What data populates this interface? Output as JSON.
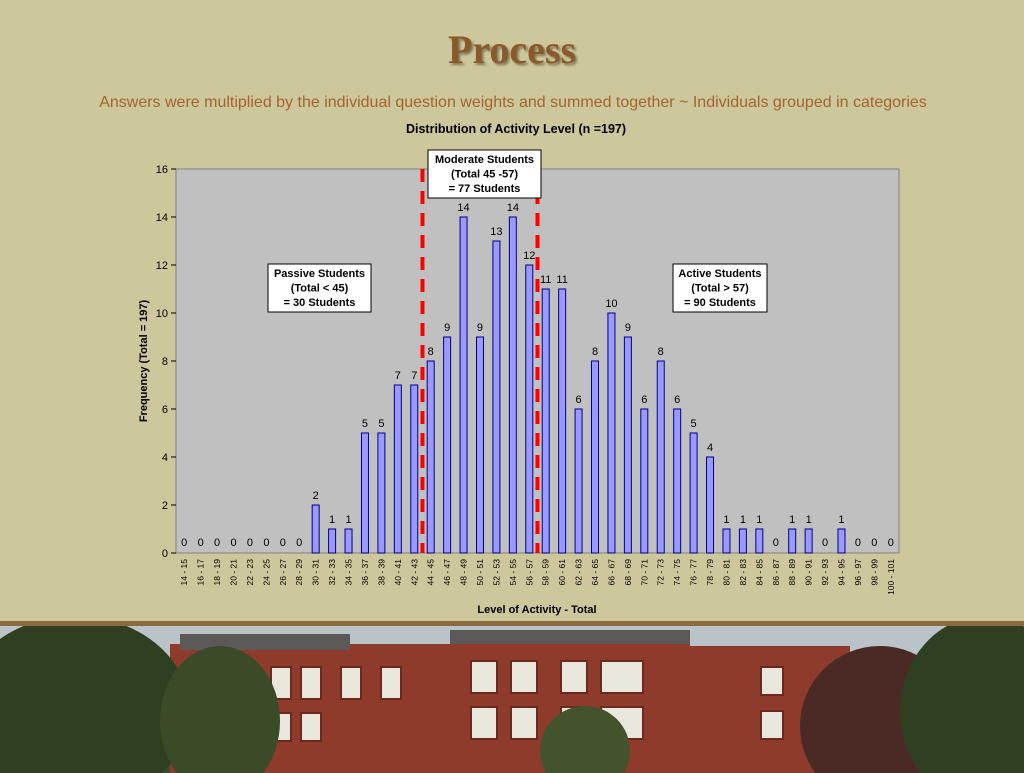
{
  "slide": {
    "title": "Process",
    "subtitle": "Answers were multiplied by the individual question weights and summed together ~ Individuals grouped in categories"
  },
  "colors": {
    "background": "#cdc79c",
    "title": "#8a5a2b",
    "subtitle": "#a3642f",
    "plot_area": "#c0c0c0",
    "bar_fill": "#9999ff",
    "bar_stroke": "#000080",
    "divider_line": "#ff0000"
  },
  "photo": {
    "icon": "campus-building-photo"
  },
  "chart_data": {
    "type": "bar",
    "title": "Distribution of Activity Level (n =197)",
    "xlabel": "Level of Activity - Total",
    "ylabel": "Frequency (Total = 197)",
    "ylim": [
      0,
      16
    ],
    "yticks": [
      "0",
      "2",
      "4",
      "6",
      "8",
      "10",
      "12",
      "14",
      "16"
    ],
    "grid": false,
    "categories": [
      "14 - 15",
      "16 - 17",
      "18 - 19",
      "20 - 21",
      "22 - 23",
      "24 - 25",
      "26 - 27",
      "28 - 29",
      "30 - 31",
      "32 - 33",
      "34 - 35",
      "36 - 37",
      "38 - 39",
      "40 - 41",
      "42 - 43",
      "44 - 45",
      "46 - 47",
      "48 - 49",
      "50 - 51",
      "52 - 53",
      "54 - 55",
      "56 - 57",
      "58 - 59",
      "60 - 61",
      "62 - 63",
      "64 - 65",
      "66 - 67",
      "68 - 69",
      "70 - 71",
      "72 - 73",
      "74 - 75",
      "76 - 77",
      "78 - 79",
      "80 - 81",
      "82 - 83",
      "84 - 85",
      "86 - 87",
      "88 - 89",
      "90 - 91",
      "92 - 93",
      "94 - 95",
      "96 - 97",
      "98 - 99",
      "100 - 101"
    ],
    "values": [
      0,
      0,
      0,
      0,
      0,
      0,
      0,
      0,
      2,
      1,
      1,
      5,
      5,
      7,
      7,
      8,
      9,
      14,
      9,
      13,
      14,
      12,
      11,
      11,
      6,
      8,
      10,
      9,
      6,
      8,
      6,
      5,
      4,
      1,
      1,
      1,
      0,
      1,
      1,
      0,
      1,
      0,
      0,
      0
    ],
    "dividers": [
      {
        "between": [
          "42 - 43",
          "44 - 45"
        ]
      },
      {
        "between": [
          "56 - 57",
          "58 - 59"
        ]
      }
    ],
    "annotations": [
      {
        "lines": [
          "Passive Students",
          "(Total < 45)",
          "= 30 Students"
        ]
      },
      {
        "lines": [
          "Moderate Students",
          "(Total 45 -57)",
          "= 77 Students"
        ]
      },
      {
        "lines": [
          "Active Students",
          "(Total > 57)",
          "= 90 Students"
        ]
      }
    ]
  }
}
